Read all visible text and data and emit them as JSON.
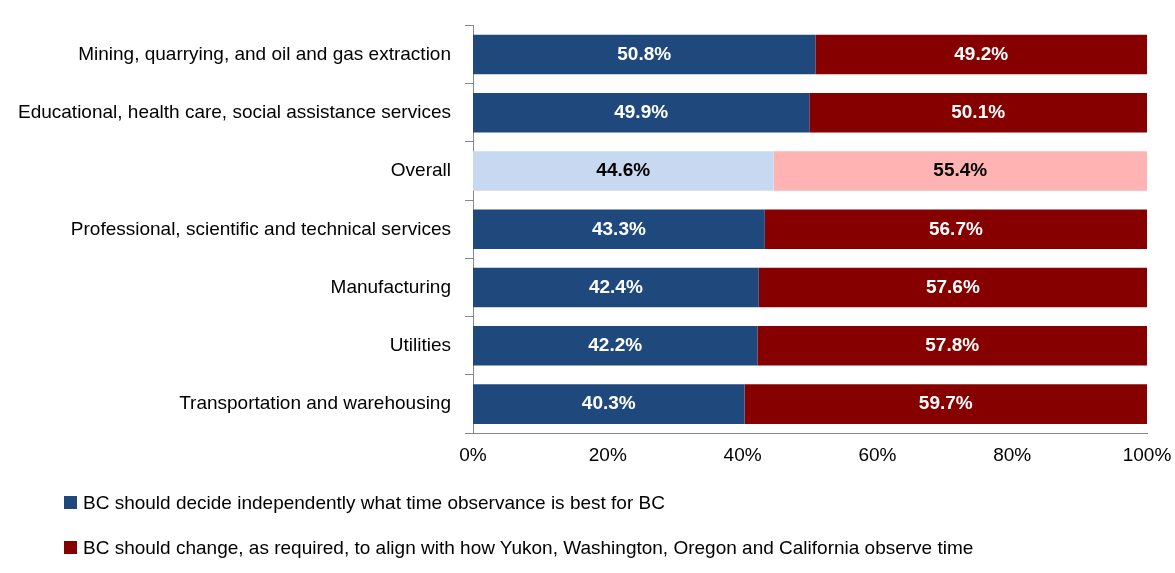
{
  "chart_data": {
    "type": "bar",
    "orientation": "horizontal",
    "stacked": true,
    "grid": false,
    "legend": "bottom",
    "categories": [
      "Mining, quarrying, and oil and gas extraction",
      "Educational, health care, social assistance services",
      "Overall",
      "Professional, scientific and technical services",
      "Manufacturing",
      "Utilities",
      "Transportation and warehousing"
    ],
    "xlim": [
      0,
      100
    ],
    "xticks": [
      {
        "value": 0,
        "label": "0%"
      },
      {
        "value": 20,
        "label": "20%"
      },
      {
        "value": 40,
        "label": "40%"
      },
      {
        "value": 60,
        "label": "60%"
      },
      {
        "value": 80,
        "label": "80%"
      },
      {
        "value": 100,
        "label": "100%"
      }
    ],
    "series": [
      {
        "name": "BC should decide independently what time observance is best for BC",
        "color": "#1f497d",
        "colors": [
          "#1f497d",
          "#1f497d",
          "#c6d9f1",
          "#1f497d",
          "#1f497d",
          "#1f497d",
          "#1f497d"
        ],
        "values": [
          50.8,
          49.9,
          44.6,
          43.3,
          42.4,
          42.2,
          40.3
        ],
        "value_labels": [
          "50.8%",
          "49.9%",
          "44.6%",
          "43.3%",
          "42.4%",
          "42.2%",
          "40.3%"
        ]
      },
      {
        "name": "BC should change, as required, to align with how Yukon, Washington, Oregon and California observe time",
        "color": "#860000",
        "colors": [
          "#860000",
          "#860000",
          "#ffb3b3",
          "#860000",
          "#860000",
          "#860000",
          "#860000"
        ],
        "values": [
          49.2,
          50.1,
          55.4,
          56.7,
          57.6,
          57.8,
          59.7
        ],
        "value_labels": [
          "49.2%",
          "50.1%",
          "55.4%",
          "56.7%",
          "57.6%",
          "57.8%",
          "59.7%"
        ]
      }
    ]
  }
}
